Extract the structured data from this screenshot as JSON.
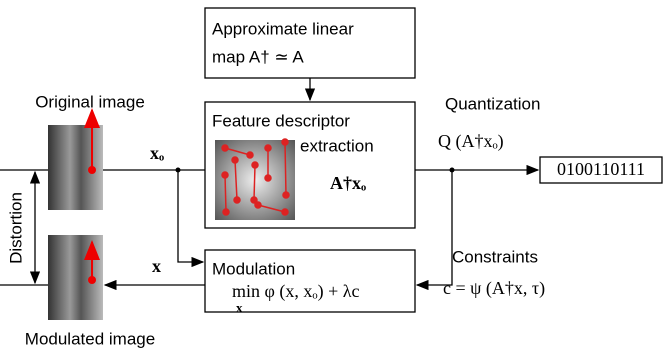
{
  "approx_box": {
    "line1": "Approximate linear",
    "line2": "map   A† ≃ A"
  },
  "feature_box": {
    "line1": "Feature  descriptor",
    "line2": "extraction",
    "formula": "A†xₒ"
  },
  "modulation_box": {
    "title": "Modulation",
    "formula": "min φ (x, xₒ) + λc",
    "subscript": "x"
  },
  "labels": {
    "original": "Original image",
    "modulated": "Modulated image",
    "distortion": "Distortion",
    "quantization": "Quantization",
    "quantization_formula": "Q (A†xₒ)",
    "output": "0100110111",
    "constraints": "Constraints",
    "constraints_formula": "c = ψ (A†x, τ)",
    "xo": "xₒ",
    "x": "x"
  }
}
